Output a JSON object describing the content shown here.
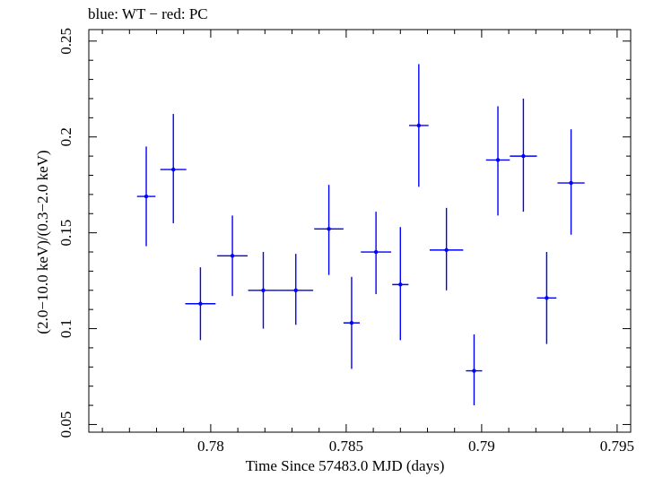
{
  "chart_data": {
    "type": "scatter",
    "title": "blue: WT − red: PC",
    "xlabel": "Time Since 57483.0 MJD (days)",
    "ylabel": "(2.0−10.0 keV)/(0.3−2.0 keV)",
    "xlim": [
      0.7755,
      0.7955
    ],
    "ylim": [
      0.046,
      0.256
    ],
    "xticks": [
      0.78,
      0.785,
      0.79,
      0.795
    ],
    "xtick_labels": [
      "0.78",
      "0.785",
      "0.79",
      "0.795"
    ],
    "yticks": [
      0.05,
      0.1,
      0.15,
      0.2,
      0.25
    ],
    "ytick_labels": [
      "0.05",
      "0.1",
      "0.15",
      "0.2",
      "0.25"
    ],
    "colors": {
      "series": "#0000ff",
      "axes": "#000000"
    },
    "series": [
      {
        "name": "WT",
        "color": "#0000ff",
        "points": [
          {
            "x": 0.77762,
            "xerr": 0.00034,
            "y": 0.169,
            "ylo": 0.143,
            "yhi": 0.195
          },
          {
            "x": 0.77862,
            "xerr": 0.00048,
            "y": 0.183,
            "ylo": 0.155,
            "yhi": 0.212
          },
          {
            "x": 0.77962,
            "xerr": 0.00056,
            "y": 0.113,
            "ylo": 0.094,
            "yhi": 0.132
          },
          {
            "x": 0.7808,
            "xerr": 0.00056,
            "y": 0.138,
            "ylo": 0.117,
            "yhi": 0.159
          },
          {
            "x": 0.78194,
            "xerr": 0.00056,
            "y": 0.12,
            "ylo": 0.1,
            "yhi": 0.14
          },
          {
            "x": 0.78314,
            "xerr": 0.00064,
            "y": 0.12,
            "ylo": 0.102,
            "yhi": 0.139
          },
          {
            "x": 0.78436,
            "xerr": 0.00054,
            "y": 0.152,
            "ylo": 0.128,
            "yhi": 0.175
          },
          {
            "x": 0.7852,
            "xerr": 0.0003,
            "y": 0.103,
            "ylo": 0.079,
            "yhi": 0.127
          },
          {
            "x": 0.7861,
            "xerr": 0.00056,
            "y": 0.14,
            "ylo": 0.118,
            "yhi": 0.161
          },
          {
            "x": 0.787,
            "xerr": 0.0003,
            "y": 0.123,
            "ylo": 0.094,
            "yhi": 0.153
          },
          {
            "x": 0.78768,
            "xerr": 0.00036,
            "y": 0.206,
            "ylo": 0.174,
            "yhi": 0.238
          },
          {
            "x": 0.7887,
            "xerr": 0.00062,
            "y": 0.141,
            "ylo": 0.12,
            "yhi": 0.163
          },
          {
            "x": 0.78972,
            "xerr": 0.0003,
            "y": 0.078,
            "ylo": 0.06,
            "yhi": 0.097
          },
          {
            "x": 0.7906,
            "xerr": 0.00044,
            "y": 0.188,
            "ylo": 0.159,
            "yhi": 0.216
          },
          {
            "x": 0.79154,
            "xerr": 0.0005,
            "y": 0.19,
            "ylo": 0.161,
            "yhi": 0.22
          },
          {
            "x": 0.7924,
            "xerr": 0.00036,
            "y": 0.116,
            "ylo": 0.092,
            "yhi": 0.14
          },
          {
            "x": 0.7933,
            "xerr": 0.0005,
            "y": 0.176,
            "ylo": 0.149,
            "yhi": 0.204
          }
        ]
      }
    ]
  }
}
